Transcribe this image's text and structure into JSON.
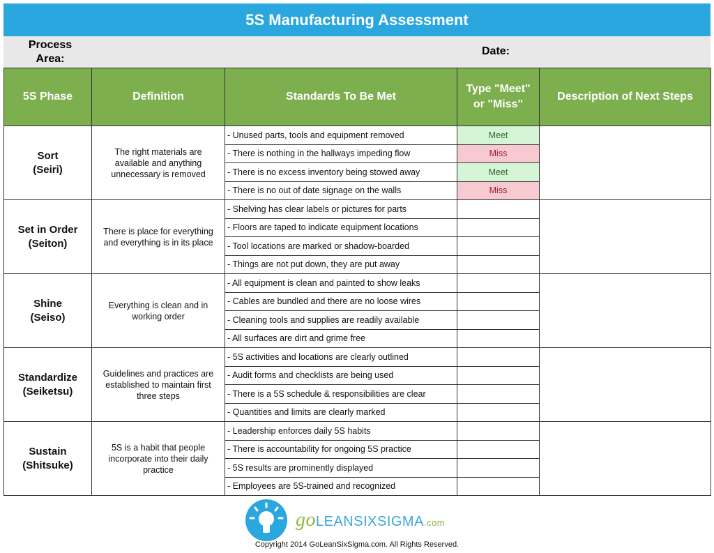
{
  "title": "5S Manufacturing Assessment",
  "meta": {
    "process_area_label": "Process Area:",
    "date_label": "Date:"
  },
  "headers": [
    "5S Phase",
    "Definition",
    "Standards To Be Met",
    "Type \"Meet\" or \"Miss\"",
    "Description of Next Steps"
  ],
  "phases": [
    {
      "name": "Sort",
      "sub": "(Seiri)",
      "definition": "The right materials are available and anything unnecessary is removed",
      "standards": [
        "- Unused parts, tools and equipment removed",
        "- There is nothing in the hallways impeding flow",
        "- There is no excess inventory being stowed away",
        "- There is no out of date signage on the walls"
      ],
      "results": [
        "Meet",
        "Miss",
        "Meet",
        "Miss"
      ]
    },
    {
      "name": "Set in Order",
      "sub": "(Seiton)",
      "definition": "There is place for everything and everything is in its place",
      "standards": [
        "- Shelving has clear labels or pictures for parts",
        "- Floors are taped to indicate equipment locations",
        "- Tool locations are marked or shadow-boarded",
        "- Things are not put down, they are put away"
      ],
      "results": [
        "",
        "",
        "",
        ""
      ]
    },
    {
      "name": "Shine",
      "sub": "(Seiso)",
      "definition": "Everything is clean and in working order",
      "standards": [
        "- All equipment is clean and painted to show leaks",
        "- Cables are bundled and there are no loose wires",
        "- Cleaning tools and supplies are readily available",
        "- All surfaces are dirt and grime free"
      ],
      "results": [
        "",
        "",
        "",
        ""
      ]
    },
    {
      "name": "Standardize",
      "sub": "(Seiketsu)",
      "definition": "Guidelines and practices are established to maintain first three steps",
      "standards": [
        "- 5S activities and locations are clearly outlined",
        "- Audit forms and checklists are being used",
        "- There is a 5S schedule & responsibilities are clear",
        "- Quantities and limits are clearly marked"
      ],
      "results": [
        "",
        "",
        "",
        ""
      ]
    },
    {
      "name": "Sustain",
      "sub": "(Shitsuke)",
      "definition": "5S is a habit that people incorporate into their daily practice",
      "standards": [
        "- Leadership enforces daily 5S habits",
        "- There is accountability for ongoing 5S practice",
        "- 5S results are prominently displayed",
        "- Employees are 5S-trained and recognized"
      ],
      "results": [
        "",
        "",
        "",
        ""
      ]
    }
  ],
  "colors": {
    "title_bar": "#2aa7df",
    "header": "#7daf4f",
    "meet": "#d6f5d6",
    "miss": "#f7c9d0"
  },
  "footer": {
    "logo": {
      "go": "go",
      "brand": "LEANSIXSIGMA",
      ".com": ".com"
    },
    "copyright": "Copyright 2014 GoLeanSixSigma.com. All Rights Reserved."
  }
}
